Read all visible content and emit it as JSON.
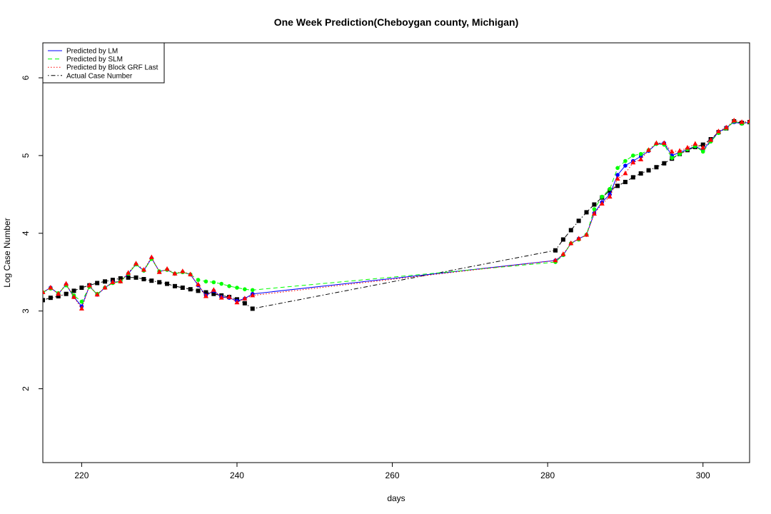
{
  "chart_data": {
    "type": "line",
    "title": "One Week Prediction(Cheboygan county, Michigan)",
    "xlabel": "days",
    "ylabel": "Log Case Number",
    "xlim": [
      215,
      306
    ],
    "ylim": [
      1.05,
      6.45
    ],
    "xticks": [
      220,
      240,
      260,
      280,
      300
    ],
    "yticks": [
      2,
      3,
      4,
      5,
      6
    ],
    "legend_position": "top-left",
    "series": [
      {
        "name": "Predicted by LM",
        "color": "#0000ff",
        "line": "solid",
        "marker": "circle",
        "x": [
          215,
          216,
          217,
          218,
          219,
          220,
          221,
          222,
          223,
          224,
          225,
          226,
          227,
          228,
          229,
          230,
          231,
          232,
          233,
          234,
          235,
          236,
          237,
          238,
          239,
          240,
          241,
          242,
          281,
          282,
          283,
          284,
          285,
          286,
          287,
          288,
          289,
          290,
          291,
          292,
          293,
          294,
          295,
          296,
          297,
          298,
          299,
          300,
          301,
          302,
          303,
          304,
          305,
          306
        ],
        "y": [
          3.24,
          3.3,
          3.22,
          3.34,
          3.18,
          3.06,
          3.32,
          3.21,
          3.3,
          3.37,
          3.38,
          3.48,
          3.6,
          3.52,
          3.68,
          3.51,
          3.53,
          3.48,
          3.5,
          3.47,
          3.33,
          3.2,
          3.26,
          3.18,
          3.17,
          3.13,
          3.16,
          3.22,
          3.65,
          3.72,
          3.87,
          3.93,
          3.98,
          4.26,
          4.4,
          4.5,
          4.75,
          4.87,
          4.93,
          4.99,
          5.06,
          5.15,
          5.16,
          5.0,
          5.04,
          5.08,
          5.12,
          5.07,
          5.19,
          5.3,
          5.36,
          5.43,
          5.41,
          5.43
        ]
      },
      {
        "name": "Predicted by SLM",
        "color": "#00ff00",
        "line": "dashed",
        "marker": "circle",
        "x": [
          215,
          216,
          217,
          218,
          219,
          220,
          221,
          222,
          223,
          224,
          225,
          226,
          227,
          228,
          229,
          230,
          231,
          232,
          233,
          234,
          235,
          236,
          237,
          238,
          239,
          240,
          241,
          242,
          281,
          282,
          283,
          284,
          285,
          286,
          287,
          288,
          289,
          290,
          291,
          292,
          293,
          294,
          295,
          296,
          297,
          298,
          299,
          300,
          301,
          302,
          303,
          304,
          305,
          306
        ],
        "y": [
          3.24,
          3.29,
          3.23,
          3.33,
          3.2,
          3.12,
          3.31,
          3.22,
          3.3,
          3.36,
          3.38,
          3.48,
          3.6,
          3.52,
          3.67,
          3.51,
          3.53,
          3.48,
          3.5,
          3.47,
          3.4,
          3.38,
          3.37,
          3.35,
          3.32,
          3.3,
          3.28,
          3.27,
          3.63,
          3.72,
          3.87,
          3.92,
          3.98,
          4.31,
          4.47,
          4.57,
          4.84,
          4.93,
          5.0,
          5.02,
          5.07,
          5.15,
          5.14,
          4.97,
          5.02,
          5.08,
          5.12,
          5.05,
          5.18,
          5.29,
          5.35,
          5.44,
          5.41,
          5.43
        ]
      },
      {
        "name": "Predicted by Block GRF Last",
        "color": "#ff0000",
        "line": "dotted",
        "marker": "triangle",
        "x": [
          215,
          216,
          217,
          218,
          219,
          220,
          221,
          222,
          223,
          224,
          225,
          226,
          227,
          228,
          229,
          230,
          231,
          232,
          233,
          234,
          235,
          236,
          237,
          238,
          239,
          240,
          241,
          242,
          281,
          282,
          283,
          284,
          285,
          286,
          287,
          288,
          289,
          290,
          291,
          292,
          293,
          294,
          295,
          296,
          297,
          298,
          299,
          300,
          301,
          302,
          303,
          304,
          305,
          306
        ],
        "y": [
          3.24,
          3.3,
          3.22,
          3.35,
          3.18,
          3.03,
          3.33,
          3.21,
          3.3,
          3.37,
          3.38,
          3.49,
          3.61,
          3.53,
          3.69,
          3.5,
          3.54,
          3.48,
          3.51,
          3.47,
          3.34,
          3.19,
          3.27,
          3.17,
          3.18,
          3.11,
          3.16,
          3.2,
          3.65,
          3.73,
          3.87,
          3.93,
          3.98,
          4.25,
          4.38,
          4.47,
          4.7,
          4.77,
          4.91,
          4.95,
          5.07,
          5.16,
          5.16,
          5.05,
          5.06,
          5.1,
          5.15,
          5.1,
          5.2,
          5.31,
          5.36,
          5.45,
          5.43,
          5.44
        ]
      },
      {
        "name": "Actual Case Number",
        "color": "#000000",
        "line": "dotdash",
        "marker": "square",
        "x": [
          215,
          216,
          217,
          218,
          219,
          220,
          221,
          222,
          223,
          224,
          225,
          226,
          227,
          228,
          229,
          230,
          231,
          232,
          233,
          234,
          235,
          236,
          237,
          238,
          239,
          240,
          241,
          242,
          281,
          282,
          283,
          284,
          285,
          286,
          287,
          288,
          289,
          290,
          291,
          292,
          293,
          294,
          295,
          296,
          297,
          298,
          299,
          300,
          301,
          302,
          303,
          304,
          305,
          306
        ],
        "y": [
          3.14,
          3.17,
          3.19,
          3.22,
          3.26,
          3.3,
          3.33,
          3.36,
          3.38,
          3.4,
          3.42,
          3.43,
          3.43,
          3.41,
          3.39,
          3.37,
          3.35,
          3.32,
          3.3,
          3.28,
          3.26,
          3.24,
          3.22,
          3.2,
          3.18,
          3.15,
          3.1,
          3.03,
          3.78,
          3.92,
          4.04,
          4.16,
          4.27,
          4.37,
          4.46,
          4.55,
          4.61,
          4.66,
          4.72,
          4.77,
          4.81,
          4.85,
          4.9,
          4.96,
          5.02,
          5.07,
          5.11,
          5.14,
          5.21,
          5.3,
          5.35,
          5.44,
          5.42,
          5.43
        ]
      }
    ]
  }
}
